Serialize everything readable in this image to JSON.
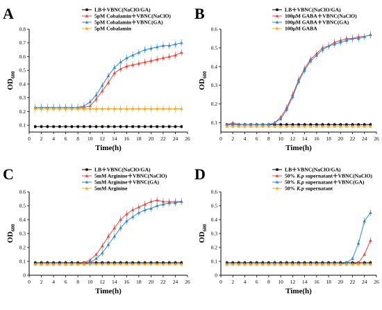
{
  "figure": {
    "panels": [
      "A",
      "B",
      "C",
      "D"
    ]
  },
  "chart_data": [
    {
      "panel": "A",
      "type": "line",
      "xlabel": "Time(h)",
      "ylabel": "OD600",
      "ylabel_main": "OD",
      "ylabel_sub": "600",
      "xlim": [
        0,
        26
      ],
      "ylim": [
        0.05,
        0.8
      ],
      "x_ticks": [
        0,
        2,
        4,
        6,
        8,
        10,
        12,
        14,
        16,
        18,
        20,
        22,
        24,
        26
      ],
      "y_ticks": [
        0.1,
        0.2,
        0.3,
        0.4,
        0.5,
        0.6,
        0.7,
        0.8
      ],
      "legend_position": "top-left",
      "x": [
        1,
        2,
        3,
        4,
        5,
        6,
        7,
        8,
        9,
        10,
        11,
        12,
        13,
        14,
        15,
        16,
        17,
        18,
        19,
        20,
        21,
        22,
        23,
        24,
        25
      ],
      "series": [
        {
          "name": "LB＋VBNC(NaClO/GA)",
          "color": "#000000",
          "marker": "square",
          "values": [
            0.09,
            0.09,
            0.09,
            0.09,
            0.09,
            0.09,
            0.09,
            0.09,
            0.09,
            0.09,
            0.09,
            0.09,
            0.09,
            0.09,
            0.09,
            0.09,
            0.09,
            0.09,
            0.09,
            0.09,
            0.09,
            0.09,
            0.09,
            0.09,
            0.09
          ]
        },
        {
          "name": "5pM Cobalamin＋VBNC(NaClO)",
          "color": "#e8463c",
          "marker": "triangle",
          "values": [
            0.23,
            0.23,
            0.23,
            0.23,
            0.23,
            0.23,
            0.23,
            0.23,
            0.23,
            0.24,
            0.29,
            0.35,
            0.41,
            0.48,
            0.51,
            0.53,
            0.54,
            0.55,
            0.56,
            0.57,
            0.58,
            0.59,
            0.6,
            0.61,
            0.63
          ]
        },
        {
          "name": "5pM Cobalamin＋VBNC(GA)",
          "color": "#2e86d1",
          "marker": "triangle",
          "values": [
            0.23,
            0.23,
            0.23,
            0.23,
            0.23,
            0.23,
            0.23,
            0.23,
            0.24,
            0.27,
            0.32,
            0.39,
            0.46,
            0.52,
            0.56,
            0.59,
            0.61,
            0.63,
            0.65,
            0.66,
            0.67,
            0.68,
            0.68,
            0.69,
            0.7
          ]
        },
        {
          "name": "5pM Cobalamin",
          "color": "#f5a623",
          "marker": "triangle",
          "values": [
            0.22,
            0.22,
            0.22,
            0.22,
            0.22,
            0.22,
            0.22,
            0.22,
            0.22,
            0.22,
            0.22,
            0.22,
            0.22,
            0.22,
            0.22,
            0.22,
            0.22,
            0.22,
            0.22,
            0.22,
            0.22,
            0.22,
            0.22,
            0.22,
            0.22
          ]
        }
      ]
    },
    {
      "panel": "B",
      "type": "line",
      "xlabel": "Time(h)",
      "ylabel": "OD600",
      "ylabel_main": "OD",
      "ylabel_sub": "600",
      "xlim": [
        0,
        26
      ],
      "ylim": [
        0.05,
        0.6
      ],
      "x_ticks": [
        0,
        2,
        4,
        6,
        8,
        10,
        12,
        14,
        16,
        18,
        20,
        22,
        24,
        26
      ],
      "y_ticks": [
        0.1,
        0.2,
        0.3,
        0.4,
        0.5,
        0.6
      ],
      "legend_position": "top-left",
      "x": [
        1,
        2,
        3,
        4,
        5,
        6,
        7,
        8,
        9,
        10,
        11,
        12,
        13,
        14,
        15,
        16,
        17,
        18,
        19,
        20,
        21,
        22,
        23,
        24,
        25
      ],
      "series": [
        {
          "name": "LB＋VBNC(NaClO/GA)",
          "color": "#000000",
          "marker": "square",
          "values": [
            0.09,
            0.09,
            0.09,
            0.09,
            0.09,
            0.09,
            0.09,
            0.09,
            0.09,
            0.09,
            0.09,
            0.09,
            0.09,
            0.09,
            0.09,
            0.09,
            0.09,
            0.09,
            0.09,
            0.09,
            0.09,
            0.09,
            0.09,
            0.09,
            0.09
          ]
        },
        {
          "name": "100μM GABA＋VBNC(NaClO)",
          "color": "#e8463c",
          "marker": "triangle",
          "values": [
            0.09,
            0.1,
            0.09,
            0.09,
            0.09,
            0.09,
            0.09,
            0.09,
            0.1,
            0.13,
            0.18,
            0.25,
            0.33,
            0.39,
            0.44,
            0.47,
            0.5,
            0.51,
            0.53,
            0.54,
            0.55,
            0.55,
            0.56,
            0.56,
            0.57
          ]
        },
        {
          "name": "100μM GABA＋VBNC(GA)",
          "color": "#2e86d1",
          "marker": "triangle",
          "values": [
            0.09,
            0.09,
            0.09,
            0.09,
            0.09,
            0.09,
            0.09,
            0.09,
            0.1,
            0.12,
            0.17,
            0.24,
            0.32,
            0.38,
            0.43,
            0.46,
            0.49,
            0.51,
            0.52,
            0.53,
            0.54,
            0.55,
            0.55,
            0.56,
            0.57
          ]
        },
        {
          "name": "100μM GABA",
          "color": "#f5a623",
          "marker": "triangle",
          "values": [
            0.08,
            0.08,
            0.08,
            0.08,
            0.08,
            0.08,
            0.08,
            0.08,
            0.08,
            0.08,
            0.08,
            0.08,
            0.08,
            0.08,
            0.08,
            0.08,
            0.08,
            0.08,
            0.08,
            0.08,
            0.08,
            0.08,
            0.08,
            0.08,
            0.08
          ]
        }
      ]
    },
    {
      "panel": "C",
      "type": "line",
      "xlabel": "Time(h)",
      "ylabel": "OD600",
      "ylabel_main": "OD",
      "ylabel_sub": "600",
      "xlim": [
        0,
        26
      ],
      "ylim": [
        0,
        0.6
      ],
      "x_ticks": [
        0,
        2,
        4,
        6,
        8,
        10,
        12,
        14,
        16,
        18,
        20,
        22,
        24,
        26
      ],
      "y_ticks": [
        0,
        0.1,
        0.2,
        0.3,
        0.4,
        0.5,
        0.6
      ],
      "legend_position": "top-left",
      "x": [
        1,
        2,
        3,
        4,
        5,
        6,
        7,
        8,
        9,
        10,
        11,
        12,
        13,
        14,
        15,
        16,
        17,
        18,
        19,
        20,
        21,
        22,
        23,
        24,
        25
      ],
      "series": [
        {
          "name": "LB＋VBNC(NaClO/GA)",
          "color": "#000000",
          "marker": "square",
          "values": [
            0.09,
            0.09,
            0.09,
            0.09,
            0.09,
            0.09,
            0.09,
            0.09,
            0.09,
            0.09,
            0.09,
            0.09,
            0.09,
            0.09,
            0.09,
            0.09,
            0.09,
            0.09,
            0.09,
            0.09,
            0.09,
            0.09,
            0.09,
            0.09,
            0.09
          ]
        },
        {
          "name": "5mM Arginine＋VBNC(NaClO)",
          "color": "#e8463c",
          "marker": "triangle",
          "values": [
            0.08,
            0.08,
            0.08,
            0.08,
            0.08,
            0.08,
            0.08,
            0.08,
            0.09,
            0.11,
            0.15,
            0.21,
            0.28,
            0.34,
            0.4,
            0.44,
            0.47,
            0.49,
            0.51,
            0.53,
            0.54,
            0.53,
            0.53,
            0.53,
            0.53
          ]
        },
        {
          "name": "5mM Arginine＋VBNC(GA)",
          "color": "#2e86d1",
          "marker": "triangle",
          "values": [
            0.08,
            0.08,
            0.08,
            0.08,
            0.08,
            0.08,
            0.08,
            0.08,
            0.08,
            0.09,
            0.12,
            0.16,
            0.22,
            0.28,
            0.34,
            0.39,
            0.42,
            0.45,
            0.47,
            0.48,
            0.5,
            0.51,
            0.52,
            0.52,
            0.53
          ]
        },
        {
          "name": "5mM Arginine",
          "color": "#f5a623",
          "marker": "triangle",
          "values": [
            0.08,
            0.08,
            0.08,
            0.08,
            0.08,
            0.08,
            0.08,
            0.08,
            0.08,
            0.08,
            0.08,
            0.08,
            0.08,
            0.08,
            0.08,
            0.08,
            0.08,
            0.08,
            0.08,
            0.08,
            0.08,
            0.08,
            0.08,
            0.08,
            0.08
          ]
        }
      ]
    },
    {
      "panel": "D",
      "type": "line",
      "xlabel": "Time(h)",
      "ylabel": "OD600",
      "ylabel_main": "OD",
      "ylabel_sub": "600",
      "xlim": [
        0,
        26
      ],
      "ylim": [
        0,
        0.6
      ],
      "x_ticks": [
        0,
        2,
        4,
        6,
        8,
        10,
        12,
        14,
        16,
        18,
        20,
        22,
        24,
        26
      ],
      "y_ticks": [
        0,
        0.1,
        0.2,
        0.3,
        0.4,
        0.5,
        0.6
      ],
      "legend_position": "top-left",
      "x": [
        1,
        2,
        3,
        4,
        5,
        6,
        7,
        8,
        9,
        10,
        11,
        12,
        13,
        14,
        15,
        16,
        17,
        18,
        19,
        20,
        21,
        22,
        23,
        24,
        25
      ],
      "series": [
        {
          "name": "LB＋VBNC(NaClO/GA)",
          "color": "#000000",
          "marker": "square",
          "values": [
            0.09,
            0.09,
            0.09,
            0.09,
            0.09,
            0.09,
            0.09,
            0.09,
            0.09,
            0.09,
            0.09,
            0.09,
            0.09,
            0.09,
            0.09,
            0.09,
            0.09,
            0.09,
            0.09,
            0.09,
            0.09,
            0.09,
            0.09,
            0.09,
            0.09
          ]
        },
        {
          "name": "50% K.p supernatant＋VBNC(NaClO)",
          "name_parts": [
            "50% ",
            "K.p",
            " supernatant＋VBNC(NaClO)"
          ],
          "color": "#e8463c",
          "marker": "triangle",
          "values": [
            0.08,
            0.08,
            0.08,
            0.08,
            0.08,
            0.08,
            0.08,
            0.08,
            0.08,
            0.08,
            0.08,
            0.08,
            0.08,
            0.08,
            0.08,
            0.08,
            0.08,
            0.08,
            0.08,
            0.08,
            0.08,
            0.08,
            0.09,
            0.15,
            0.25
          ]
        },
        {
          "name": "50% K.p supernatant＋VBNC(GA)",
          "name_parts": [
            "50% ",
            "K.p",
            " supernatant＋VBNC(GA)"
          ],
          "color": "#2e86d1",
          "marker": "triangle",
          "values": [
            0.08,
            0.08,
            0.08,
            0.08,
            0.08,
            0.08,
            0.08,
            0.08,
            0.08,
            0.08,
            0.08,
            0.08,
            0.08,
            0.08,
            0.08,
            0.08,
            0.08,
            0.08,
            0.08,
            0.08,
            0.09,
            0.12,
            0.23,
            0.39,
            0.45
          ]
        },
        {
          "name": "50% K.p supernatant",
          "name_parts": [
            "50% ",
            "K.p",
            " supernatant"
          ],
          "color": "#f5a623",
          "marker": "triangle",
          "values": [
            0.08,
            0.08,
            0.08,
            0.08,
            0.08,
            0.08,
            0.08,
            0.08,
            0.08,
            0.08,
            0.08,
            0.08,
            0.08,
            0.08,
            0.08,
            0.08,
            0.08,
            0.08,
            0.08,
            0.08,
            0.08,
            0.08,
            0.08,
            0.08,
            0.08
          ]
        }
      ]
    }
  ]
}
